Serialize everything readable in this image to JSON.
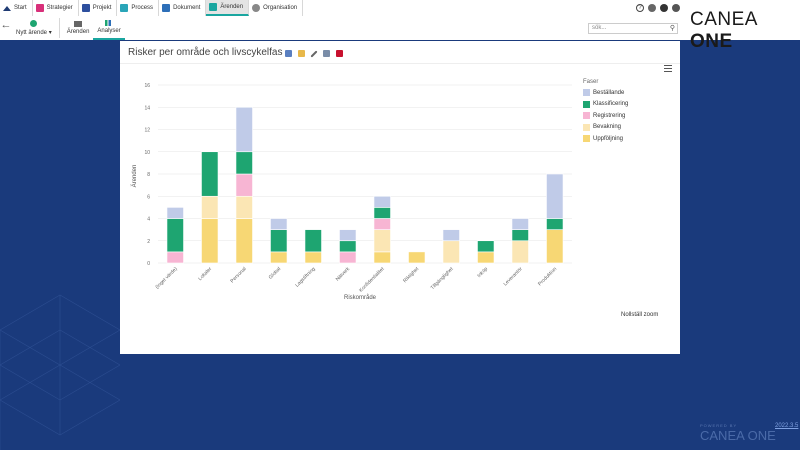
{
  "nav": {
    "items": [
      {
        "label": "Start",
        "icon": "home-icon",
        "color": "#1f3b73"
      },
      {
        "label": "Strategier",
        "icon": "strategy-icon",
        "color": "#d8307a"
      },
      {
        "label": "Projekt",
        "icon": "project-icon",
        "color": "#2d4f9e"
      },
      {
        "label": "Process",
        "icon": "process-icon",
        "color": "#2aa5b8"
      },
      {
        "label": "Dokument",
        "icon": "document-icon",
        "color": "#2d6fb8"
      },
      {
        "label": "Ärenden",
        "icon": "case-icon",
        "color": "#1aa6a0"
      },
      {
        "label": "Organisation",
        "icon": "organisation-icon",
        "color": "#555555"
      }
    ]
  },
  "toolbar": {
    "new_case": "Nytt ärende",
    "cases": "Ärenden",
    "analyses": "Analyser"
  },
  "header": {
    "brand_main": "CANEA",
    "brand_bold": "ONE",
    "search_placeholder": "sök..."
  },
  "panel": {
    "title": "Risker per område och livscykelfas",
    "reset_zoom": "Nollställ zoom"
  },
  "chart_data": {
    "type": "bar",
    "stacked": true,
    "xlabel": "Riskområde",
    "ylabel": "Ärenden",
    "ylim": [
      0,
      16
    ],
    "yticks": [
      0,
      2,
      4,
      6,
      8,
      10,
      12,
      14,
      16
    ],
    "grid": true,
    "legend_title": "Faser",
    "legend_position": "right",
    "categories": [
      "(Inget värde)",
      "Lokaler",
      "Personal",
      "Global",
      "Lagstiftning",
      "Nätverk",
      "Konfidentialitet",
      "Riktighet",
      "Tillgänglighet",
      "Inköp",
      "Leverantör",
      "Produktion"
    ],
    "series": [
      {
        "name": "Uppföljning",
        "color": "#f7d774",
        "values": [
          0,
          4,
          4,
          1,
          1,
          0,
          1,
          1,
          0,
          1,
          0,
          3
        ]
      },
      {
        "name": "Bevakning",
        "color": "#fbe6b4",
        "values": [
          0,
          2,
          2,
          0,
          0,
          0,
          2,
          0,
          2,
          0,
          2,
          0
        ]
      },
      {
        "name": "Registrering",
        "color": "#f7b5d3",
        "values": [
          1,
          0,
          2,
          0,
          0,
          1,
          1,
          0,
          0,
          0,
          0,
          0
        ]
      },
      {
        "name": "Klassificering",
        "color": "#1ea571",
        "values": [
          3,
          4,
          2,
          2,
          2,
          1,
          1,
          0,
          0,
          1,
          1,
          1
        ]
      },
      {
        "name": "Beställande",
        "color": "#c0cbe8",
        "values": [
          1,
          0,
          4,
          1,
          0,
          1,
          1,
          0,
          1,
          0,
          1,
          4
        ]
      }
    ]
  },
  "footer": {
    "powered_by": "POWERED BY",
    "brand": "CANEA ONE",
    "version": "2022.3.5"
  }
}
